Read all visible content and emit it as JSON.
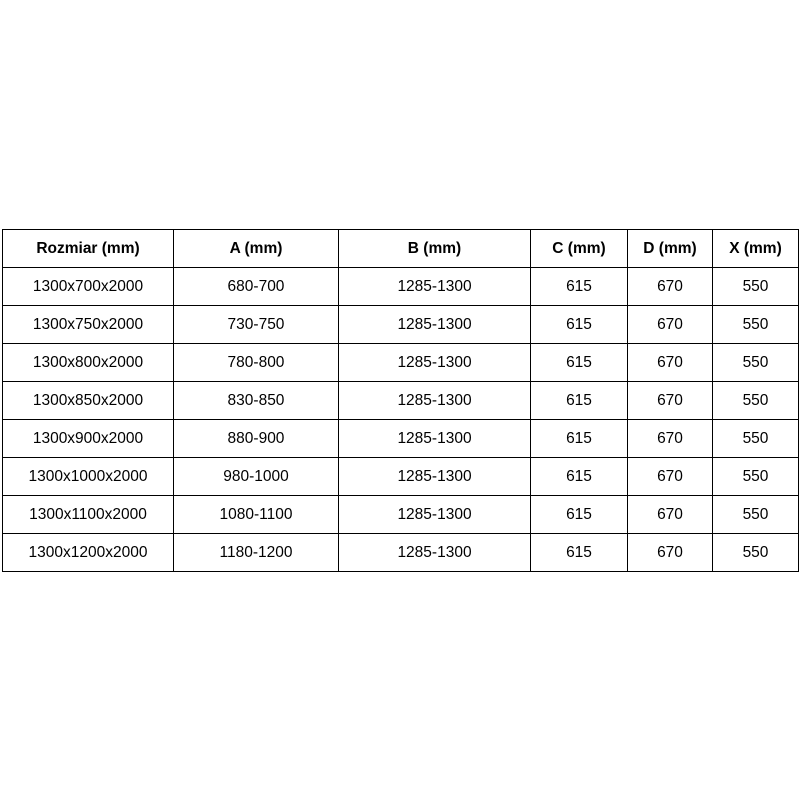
{
  "table": {
    "headers": [
      "Rozmiar (mm)",
      "A (mm)",
      "B (mm)",
      "C (mm)",
      "D (mm)",
      "X (mm)"
    ],
    "rows": [
      [
        "1300x700x2000",
        "680-700",
        "1285-1300",
        "615",
        "670",
        "550"
      ],
      [
        "1300x750x2000",
        "730-750",
        "1285-1300",
        "615",
        "670",
        "550"
      ],
      [
        "1300x800x2000",
        "780-800",
        "1285-1300",
        "615",
        "670",
        "550"
      ],
      [
        "1300x850x2000",
        "830-850",
        "1285-1300",
        "615",
        "670",
        "550"
      ],
      [
        "1300x900x2000",
        "880-900",
        "1285-1300",
        "615",
        "670",
        "550"
      ],
      [
        "1300x1000x2000",
        "980-1000",
        "1285-1300",
        "615",
        "670",
        "550"
      ],
      [
        "1300x1100x2000",
        "1080-1100",
        "1285-1300",
        "615",
        "670",
        "550"
      ],
      [
        "1300x1200x2000",
        "1180-1200",
        "1285-1300",
        "615",
        "670",
        "550"
      ]
    ]
  }
}
